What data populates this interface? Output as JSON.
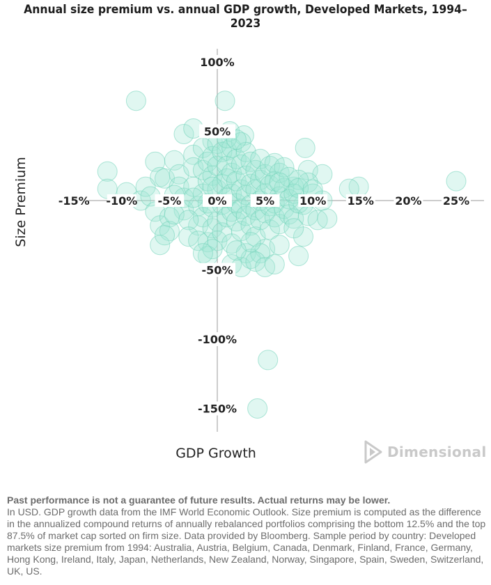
{
  "chart_data": {
    "type": "scatter",
    "title": "Annual size premium vs. annual GDP growth, Developed Markets, 1994–2023",
    "xlabel": "GDP Growth",
    "ylabel": "Size Premium",
    "x_ticks": [
      "-15%",
      "-10%",
      "-5%",
      "0%",
      "5%",
      "10%",
      "15%",
      "20%",
      "25%"
    ],
    "x_tick_values": [
      -15,
      -10,
      -5,
      0,
      5,
      10,
      15,
      20,
      25
    ],
    "y_ticks": [
      "100%",
      "50%",
      "-50%",
      "-100%",
      "-150%"
    ],
    "y_tick_values": [
      100,
      50,
      -50,
      -100,
      -150
    ],
    "xlim": [
      -16.5,
      28
    ],
    "ylim": [
      -170,
      115
    ],
    "point_color": "#9ee6d3",
    "point_stroke": "#6fd2b8",
    "points": [
      [
        -8.5,
        72
      ],
      [
        0.8,
        72
      ],
      [
        25,
        14
      ],
      [
        14.8,
        10
      ],
      [
        13.8,
        8.5
      ],
      [
        -11.5,
        21
      ],
      [
        -11.5,
        8.5
      ],
      [
        -9.5,
        6
      ],
      [
        -8,
        0
      ],
      [
        -3.5,
        48
      ],
      [
        -2.5,
        52
      ],
      [
        -0.5,
        43
      ],
      [
        1.3,
        50
      ],
      [
        2.8,
        47
      ],
      [
        1,
        36
      ],
      [
        9.2,
        38
      ],
      [
        9.5,
        22
      ],
      [
        11,
        19
      ],
      [
        9.5,
        13
      ],
      [
        10,
        5
      ],
      [
        8,
        10
      ],
      [
        9,
        -3
      ],
      [
        8.5,
        15
      ],
      [
        -6.5,
        28
      ],
      [
        -6,
        17
      ],
      [
        -5.5,
        16
      ],
      [
        -4.5,
        29
      ],
      [
        -4,
        19
      ],
      [
        -4,
        10
      ],
      [
        -3.5,
        2
      ],
      [
        -3.5,
        -7
      ],
      [
        -2.5,
        33
      ],
      [
        -2.5,
        24
      ],
      [
        -2.5,
        10
      ],
      [
        -2,
        -4
      ],
      [
        -2,
        -18
      ],
      [
        -1.5,
        38
      ],
      [
        -1.5,
        22
      ],
      [
        -1.5,
        5
      ],
      [
        -1.5,
        -12
      ],
      [
        -1,
        28
      ],
      [
        -1,
        14
      ],
      [
        -1,
        -2
      ],
      [
        -1,
        -30
      ],
      [
        -0.5,
        32
      ],
      [
        -0.5,
        18
      ],
      [
        -0.5,
        -5
      ],
      [
        -0.5,
        -20
      ],
      [
        0,
        41
      ],
      [
        0,
        25
      ],
      [
        0,
        8
      ],
      [
        0,
        -15
      ],
      [
        0,
        -29
      ],
      [
        0.5,
        35
      ],
      [
        0.5,
        12
      ],
      [
        0.5,
        -3
      ],
      [
        0.5,
        -23
      ],
      [
        1,
        25
      ],
      [
        1,
        16
      ],
      [
        1,
        2
      ],
      [
        1,
        -12
      ],
      [
        1.5,
        38
      ],
      [
        1.5,
        20
      ],
      [
        1.5,
        5
      ],
      [
        1.5,
        -8
      ],
      [
        1.5,
        -31
      ],
      [
        2,
        30
      ],
      [
        2,
        14
      ],
      [
        2,
        -2
      ],
      [
        2,
        -15
      ],
      [
        2.5,
        42
      ],
      [
        2.5,
        26
      ],
      [
        2.5,
        8
      ],
      [
        2.5,
        -6
      ],
      [
        2.5,
        -22
      ],
      [
        3,
        35
      ],
      [
        3,
        18
      ],
      [
        3,
        4
      ],
      [
        3,
        -11
      ],
      [
        3,
        -38
      ],
      [
        3.5,
        28
      ],
      [
        3.5,
        12
      ],
      [
        3.5,
        -3
      ],
      [
        3.5,
        -18
      ],
      [
        4,
        22
      ],
      [
        4,
        8
      ],
      [
        4,
        -7
      ],
      [
        4,
        -26
      ],
      [
        4.5,
        30
      ],
      [
        4.5,
        15
      ],
      [
        4.5,
        0
      ],
      [
        4.5,
        -14
      ],
      [
        5,
        19
      ],
      [
        5,
        5
      ],
      [
        5,
        -9
      ],
      [
        5,
        -35
      ],
      [
        5.5,
        25
      ],
      [
        5.5,
        11
      ],
      [
        5.5,
        -4
      ],
      [
        5.5,
        -21
      ],
      [
        6,
        27
      ],
      [
        6,
        14
      ],
      [
        6,
        -2
      ],
      [
        6,
        -12
      ],
      [
        6.5,
        20
      ],
      [
        6.5,
        3
      ],
      [
        6.5,
        -17
      ],
      [
        7,
        24
      ],
      [
        7,
        9
      ],
      [
        7,
        -6
      ],
      [
        7.5,
        17
      ],
      [
        7.5,
        1
      ],
      [
        7.5,
        -10
      ],
      [
        8,
        5
      ],
      [
        8,
        -13
      ],
      [
        8.5,
        9
      ],
      [
        8.5,
        -2
      ],
      [
        9.5,
        -11
      ],
      [
        10.5,
        -14
      ],
      [
        -7.5,
        10
      ],
      [
        -7,
        3
      ],
      [
        -6.5,
        -8
      ],
      [
        -6,
        -18
      ],
      [
        -5,
        -12
      ],
      [
        -5,
        -22
      ],
      [
        -4.5,
        -10
      ],
      [
        -3,
        -14
      ],
      [
        -3,
        -26
      ],
      [
        -2,
        -29
      ],
      [
        -1,
        -40
      ],
      [
        -0.5,
        -35
      ],
      [
        1.5,
        -46
      ],
      [
        2.5,
        -48
      ],
      [
        3.5,
        -42
      ],
      [
        4.5,
        -38
      ],
      [
        4,
        -44
      ],
      [
        5,
        -48
      ],
      [
        6,
        -46
      ],
      [
        6.5,
        -32
      ],
      [
        8.5,
        -40
      ],
      [
        9,
        -26
      ],
      [
        -6,
        -32
      ],
      [
        -5.5,
        -25
      ],
      [
        -1.5,
        -38
      ],
      [
        3.5,
        -30
      ],
      [
        2,
        -36
      ],
      [
        8,
        -20
      ],
      [
        11,
        0
      ],
      [
        11.5,
        -13
      ],
      [
        10,
        8
      ],
      [
        -2.5,
        2
      ],
      [
        -4.5,
        4
      ],
      [
        6.5,
        13
      ],
      [
        1,
        45
      ],
      [
        2,
        44
      ],
      [
        -0.5,
        10
      ],
      [
        5.3,
        -115
      ],
      [
        4.2,
        -150
      ]
    ]
  },
  "brand": {
    "name": "Dimensional"
  },
  "notes": {
    "disclaimer": "Past performance is not a guarantee of future results. Actual returns may be lower.",
    "body": "In USD. GDP growth data from the IMF World Economic Outlook. Size premium is computed as the difference in the annualized compound returns of annually rebalanced portfolios comprising the bottom 12.5% and the top 87.5% of market cap sorted on firm size. Data provided by Bloomberg. Sample period by country: Developed markets size premium from 1994: Australia, Austria, Belgium, Canada, Denmark, Finland, France, Germany, Hong Kong, Ireland, Italy, Japan, Netherlands, New Zealand, Norway, Singapore, Spain, Sweden, Switzerland, UK, US."
  }
}
